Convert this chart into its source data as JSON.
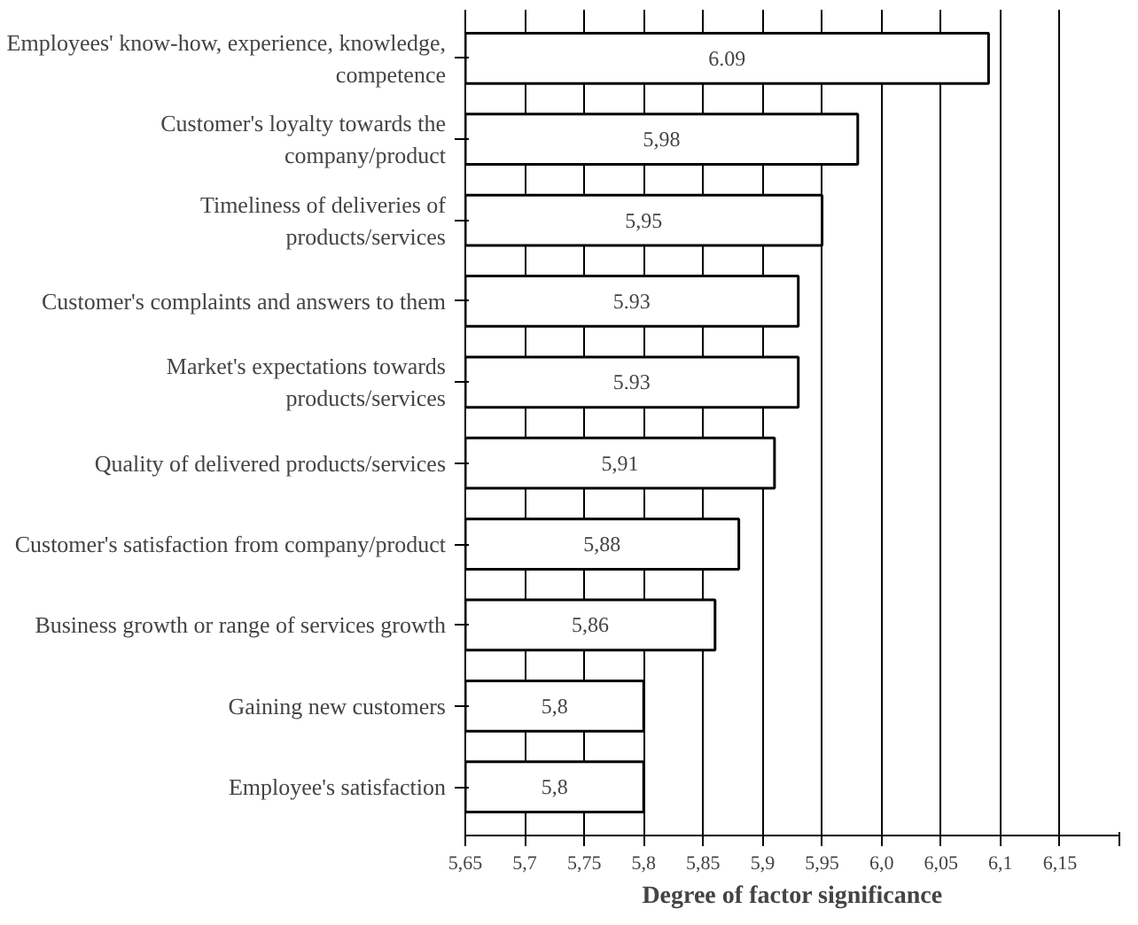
{
  "chart_data": {
    "type": "bar",
    "orientation": "horizontal",
    "xlabel": "Degree of factor significance",
    "categories": [
      "Employees' know-how, experience, knowledge, competence",
      "Customer's loyalty towards the company/product",
      "Timeliness of deliveries of products/services",
      "Customer's complaints and answers to them",
      "Market's expectations towards products/services",
      "Quality of delivered products/services",
      "Customer's satisfaction from company/product",
      "Business growth or range of services growth",
      "Gaining new customers",
      "Employee's satisfaction"
    ],
    "values": [
      6.09,
      5.98,
      5.95,
      5.93,
      5.93,
      5.91,
      5.88,
      5.86,
      5.8,
      5.8
    ],
    "value_labels": [
      "6.09",
      "5,98",
      "5,95",
      "5.93",
      "5.93",
      "5,91",
      "5,88",
      "5,86",
      "5,8",
      "5,8"
    ],
    "color": "#ffffff",
    "xlim": [
      5.65,
      6.2
    ],
    "xticks": [
      {
        "value": 5.65,
        "label": "5,65"
      },
      {
        "value": 5.7,
        "label": "5,7"
      },
      {
        "value": 5.75,
        "label": "5,75"
      },
      {
        "value": 5.8,
        "label": "5,8"
      },
      {
        "value": 5.85,
        "label": "5,85"
      },
      {
        "value": 5.9,
        "label": "5,9"
      },
      {
        "value": 5.95,
        "label": "5,95"
      },
      {
        "value": 6.0,
        "label": "6,0"
      },
      {
        "value": 6.05,
        "label": "6,05"
      },
      {
        "value": 6.1,
        "label": "6,1"
      },
      {
        "value": 6.15,
        "label": "6,15"
      },
      {
        "value": 6.2,
        "label": null
      }
    ],
    "grid": "x"
  }
}
